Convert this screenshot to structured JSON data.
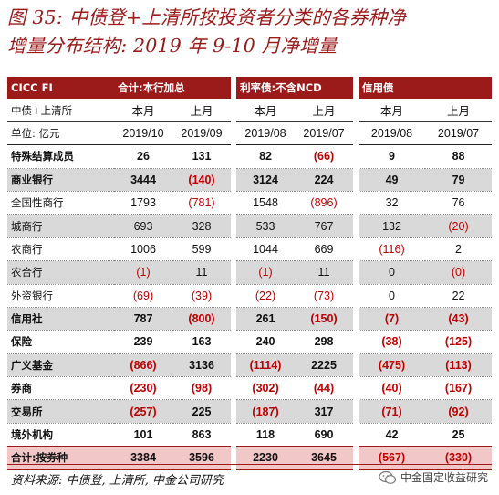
{
  "title": {
    "line1": "图 35:  中债登+上清所按投资者分类的各券种净",
    "line2": "增量分布结构:  2019 年 9-10 月净增量"
  },
  "table": {
    "group_headers": [
      "CICC FI",
      "合计:本行加总",
      "利率债:不含NCD",
      "信用债"
    ],
    "sub_header": {
      "label": "中债+上清所",
      "cols": [
        "本月",
        "上月",
        "本月",
        "上月",
        "本月",
        "上月"
      ]
    },
    "units_row": {
      "label": "单位:  亿元",
      "cols": [
        "2019/10",
        "2019/09",
        "2019/08",
        "2019/07",
        "2019/08",
        "2019/07"
      ]
    },
    "rows": [
      {
        "label": "特殊结算成员",
        "values": [
          "26",
          "131",
          "82",
          "(66)",
          "9",
          "88"
        ]
      },
      {
        "label": "商业银行",
        "values": [
          "3444",
          "(140)",
          "3124",
          "224",
          "49",
          "79"
        ]
      },
      {
        "label": "全国性商行",
        "values": [
          "1793",
          "(781)",
          "1548",
          "(896)",
          "32",
          "76"
        ]
      },
      {
        "label": "城商行",
        "values": [
          "693",
          "328",
          "533",
          "767",
          "132",
          "(20)"
        ]
      },
      {
        "label": "农商行",
        "values": [
          "1006",
          "599",
          "1044",
          "669",
          "(116)",
          "2"
        ]
      },
      {
        "label": "农合行",
        "values": [
          "(1)",
          "11",
          "(1)",
          "11",
          "0",
          "(0)"
        ]
      },
      {
        "label": "外资银行",
        "values": [
          "(69)",
          "(39)",
          "(22)",
          "(73)",
          "0",
          "22"
        ]
      },
      {
        "label": "信用社",
        "values": [
          "787",
          "(800)",
          "261",
          "(150)",
          "(7)",
          "(43)"
        ]
      },
      {
        "label": "保险",
        "values": [
          "239",
          "163",
          "240",
          "298",
          "(38)",
          "(125)"
        ]
      },
      {
        "label": "广义基金",
        "values": [
          "(866)",
          "3136",
          "(1114)",
          "2225",
          "(475)",
          "(113)"
        ]
      },
      {
        "label": "券商",
        "values": [
          "(230)",
          "(98)",
          "(302)",
          "(44)",
          "(40)",
          "(167)"
        ]
      },
      {
        "label": "交易所",
        "values": [
          "(257)",
          "225",
          "(187)",
          "317",
          "(71)",
          "(92)"
        ]
      },
      {
        "label": "境外机构",
        "values": [
          "101",
          "863",
          "118",
          "690",
          "42",
          "25"
        ]
      }
    ],
    "total": {
      "label": "合计:按券种",
      "values": [
        "3384",
        "3596",
        "2230",
        "3645",
        "(567)",
        "(330)"
      ]
    }
  },
  "footer": {
    "source": "资料来源:  中债登, 上清所, 中金公司研究",
    "brand": "中金固定收益研究",
    "brand_icon": "wechat-icon"
  }
}
